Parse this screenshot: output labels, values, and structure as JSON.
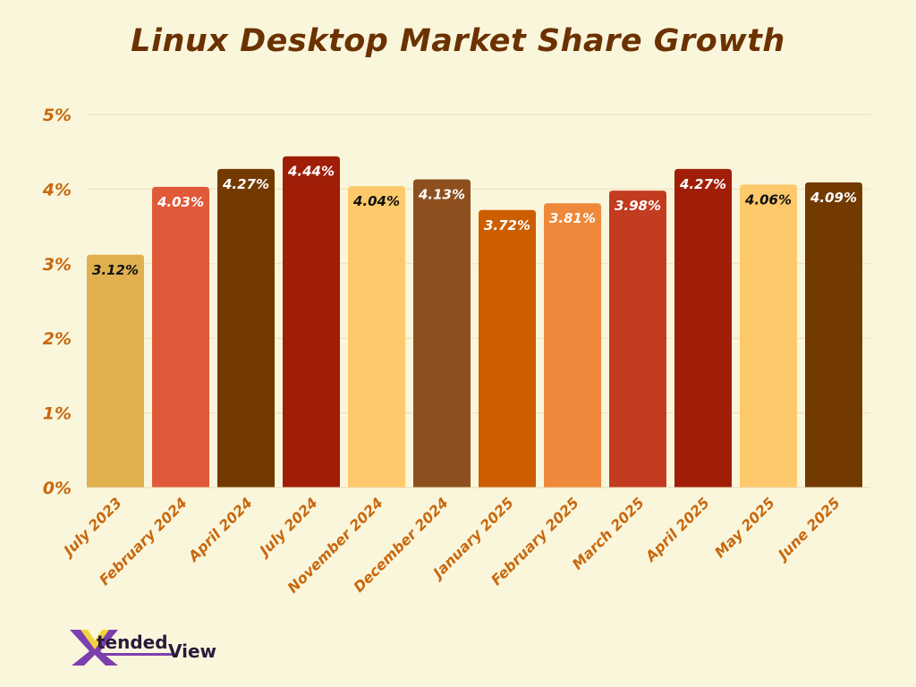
{
  "chart_data": {
    "type": "bar",
    "title": "Linux Desktop Market Share Growth",
    "xlabel": "",
    "ylabel": "",
    "ylim": [
      0,
      5
    ],
    "yticks": [
      "0%",
      "1%",
      "2%",
      "3%",
      "4%",
      "5%"
    ],
    "grid": true,
    "categories": [
      "July 2023",
      "February 2024",
      "April 2024",
      "July 2024",
      "November 2024",
      "December 2024",
      "January 2025",
      "February 2025",
      "March 2025",
      "April 2025",
      "May 2025",
      "June 2025"
    ],
    "values": [
      3.12,
      4.03,
      4.27,
      4.44,
      4.04,
      4.13,
      3.72,
      3.81,
      3.98,
      4.27,
      4.06,
      4.09
    ],
    "data_labels": [
      "3.12%",
      "4.03%",
      "4.27%",
      "4.44%",
      "4.04%",
      "4.13%",
      "3.72%",
      "3.81%",
      "3.98%",
      "4.27%",
      "4.06%",
      "4.09%"
    ],
    "bar_colors": [
      "#E0B04E",
      "#E05A3A",
      "#733A00",
      "#A01E08",
      "#FDC96A",
      "#8E4F1E",
      "#CC5E00",
      "#EE883A",
      "#C33B20",
      "#A01E08",
      "#FDC96A",
      "#733A00"
    ],
    "label_colors": [
      "#111111",
      "#FFFFFF",
      "#FFFFFF",
      "#FFFFFF",
      "#111111",
      "#FFFFFF",
      "#FFFFFF",
      "#FFFFFF",
      "#FFFFFF",
      "#FFFFFF",
      "#111111",
      "#FFFFFF"
    ],
    "axis_text_color": "#C8680E",
    "title_color": "#6B3200"
  },
  "logo": {
    "text_part1": "tended",
    "text_part2": "View",
    "mark": "X"
  }
}
